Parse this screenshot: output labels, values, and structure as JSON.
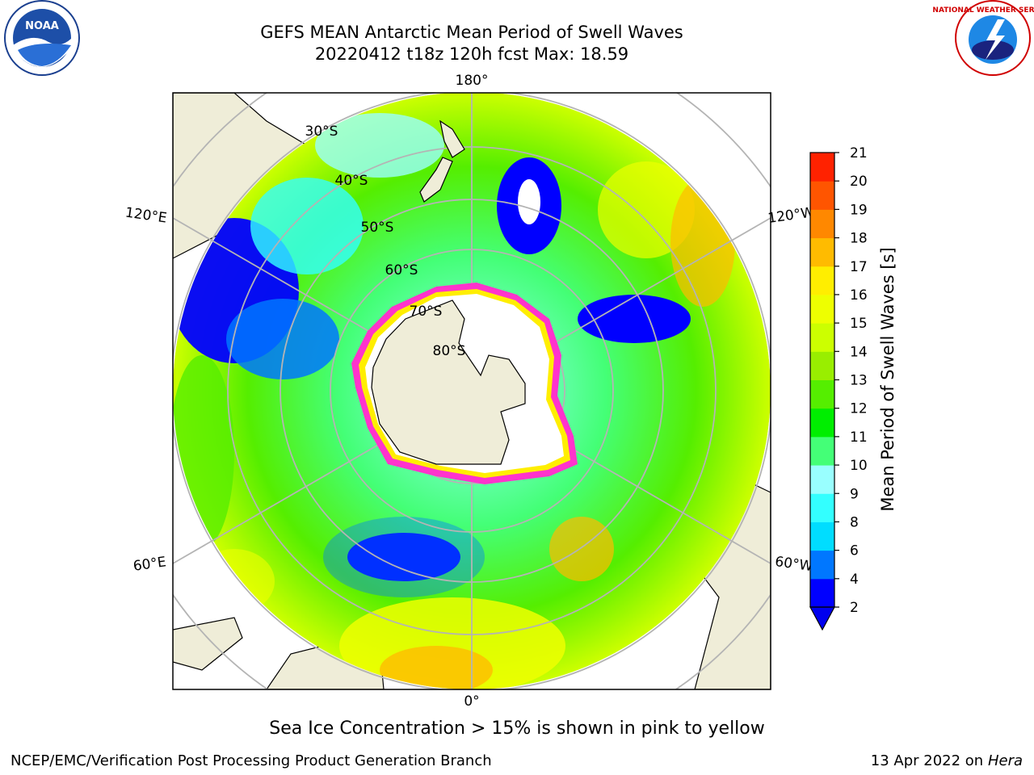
{
  "header": {
    "title_line1": "GEFS MEAN Antarctic Mean Period of Swell Waves",
    "title_line2": "20220412 t18z 120h fcst   Max: 18.59"
  },
  "logos": {
    "left": {
      "icon": "noaa-logo",
      "text": "NOAA"
    },
    "right": {
      "icon": "national-weather-service-logo",
      "text": "NATIONAL WEATHER SERVICE"
    }
  },
  "map": {
    "projection": "south-polar-stereographic",
    "meridian_labels": [
      "180°",
      "120°E",
      "120°W",
      "60°E",
      "60°W",
      "0°"
    ],
    "latitude_labels": [
      "30°S",
      "40°S",
      "50°S",
      "60°S",
      "70°S",
      "80°S"
    ]
  },
  "colorbar": {
    "title": "Mean Period of Swell Waves [s]",
    "ticks": [
      "2",
      "4",
      "6",
      "8",
      "9",
      "10",
      "11",
      "12",
      "13",
      "14",
      "15",
      "16",
      "17",
      "18",
      "19",
      "20",
      "21"
    ],
    "levels": [
      2,
      4,
      6,
      8,
      9,
      10,
      11,
      12,
      13,
      14,
      15,
      16,
      17,
      18,
      19,
      20,
      21
    ],
    "colors": [
      "#0000ff",
      "#0077ff",
      "#00ddff",
      "#33ffff",
      "#99ffff",
      "#44ff77",
      "#00ee00",
      "#55ee00",
      "#99ee00",
      "#ccff00",
      "#eeff00",
      "#ffee00",
      "#ffbb00",
      "#ff8800",
      "#ff5500",
      "#ff2200"
    ],
    "extend": "min",
    "extend_color": "#0000ee"
  },
  "caption": "Sea Ice Concentration > 15% is shown in pink to yellow",
  "footer": {
    "left": "NCEP/EMC/Verification Post Processing Product Generation Branch",
    "right_prefix": "13 Apr 2022 on ",
    "right_italic": "Hera"
  }
}
